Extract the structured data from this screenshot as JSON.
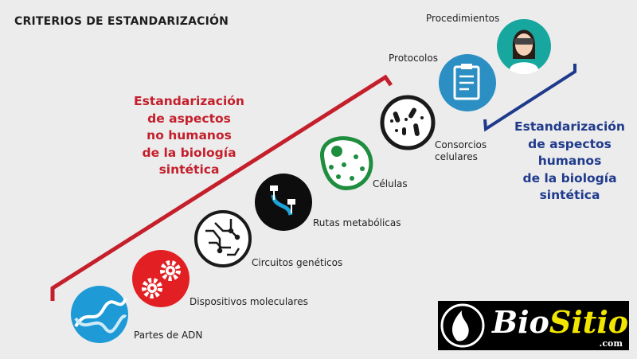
{
  "title": "CRITERIOS DE ESTANDARIZACIÓN",
  "colors": {
    "red": "#c41f2b",
    "blue": "#1f3a8c",
    "dna": "#1e9ad6",
    "gears": "#e21f22",
    "cells": "#1e8e3e",
    "protocol": "#2b8fc4",
    "person": "#18a79f"
  },
  "left_group": {
    "lines": [
      "Estandarización",
      "de aspectos",
      "no humanos",
      "de la biología",
      "sintética"
    ]
  },
  "right_group": {
    "lines": [
      "Estandarización",
      "de aspectos",
      "humanos",
      "de la biología",
      "sintética"
    ]
  },
  "steps": [
    {
      "label": "Partes de ADN",
      "icon": "dna-icon"
    },
    {
      "label": "Dispositivos moleculares",
      "icon": "gears-icon"
    },
    {
      "label": "Circuitos genéticos",
      "icon": "circuit-icon"
    },
    {
      "label": "Rutas metabólicas",
      "icon": "pathway-icon"
    },
    {
      "label": "Células",
      "icon": "cell-icon"
    },
    {
      "label": "Consorcios",
      "label2": "celulares",
      "icon": "bacteria-icon"
    },
    {
      "label": "Protocolos",
      "icon": "clipboard-icon"
    },
    {
      "label": "Procedimientos",
      "icon": "scientist-icon"
    }
  ],
  "logo": {
    "text1": "Bio",
    "text2": "Sitio",
    "suffix": ".com"
  }
}
